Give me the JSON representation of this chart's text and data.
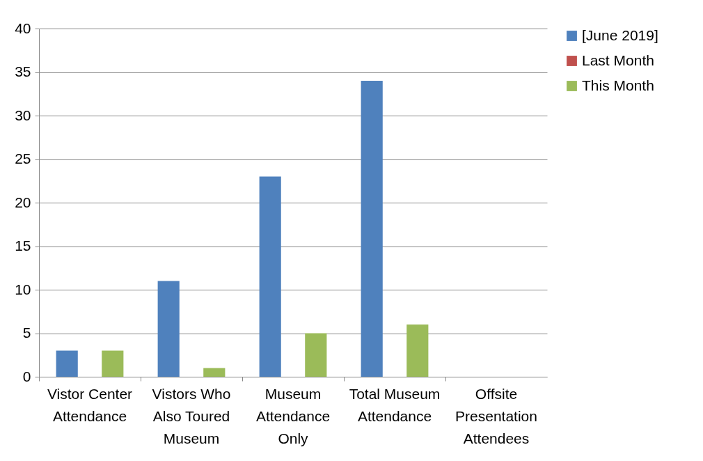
{
  "chart_data": {
    "type": "bar",
    "categories": [
      "Vistor Center Attendance",
      "Vistors Who Also Toured Museum",
      "Museum Attendance Only",
      "Total Museum Attendance",
      "Offsite Presentation Attendees"
    ],
    "series": [
      {
        "name": "[June 2019]",
        "color": "#4f81bd",
        "values": [
          3,
          11,
          23,
          34,
          0
        ]
      },
      {
        "name": "Last Month",
        "color": "#c0504d",
        "values": [
          0,
          0,
          0,
          0,
          0
        ]
      },
      {
        "name": "This Month",
        "color": "#9bbb59",
        "values": [
          3,
          1,
          5,
          6,
          0
        ]
      }
    ],
    "ylim": [
      0,
      40
    ],
    "yticks": [
      0,
      5,
      10,
      15,
      20,
      25,
      30,
      35,
      40
    ],
    "grid": "y",
    "legend": "right"
  }
}
